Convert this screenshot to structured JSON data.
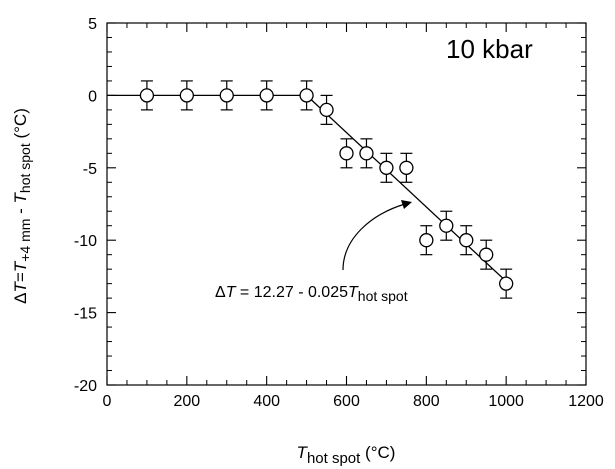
{
  "chart_data": {
    "type": "scatter",
    "panel_label": "10 kbar",
    "xlabel": {
      "main": "T",
      "sub": "hot spot",
      "unit": " (°C)"
    },
    "ylabel": {
      "delta": "Δ",
      "T1": "T",
      "eq": "=",
      "T2": "T",
      "sub1": "+4 mm",
      "minus": " - ",
      "T3": "T",
      "sub2": "hot spot",
      "unit": " (°C)"
    },
    "xlim": [
      0,
      1200
    ],
    "ylim": [
      -20,
      5
    ],
    "xticks": [
      0,
      200,
      400,
      600,
      800,
      1000,
      1200
    ],
    "yticks": [
      5,
      0,
      -5,
      -10,
      -15,
      -20
    ],
    "grid": false,
    "series": [
      {
        "x": [
          100,
          200,
          300,
          400,
          500,
          550,
          600,
          650,
          700,
          750,
          800,
          850,
          900,
          950,
          1000
        ],
        "y": [
          0,
          0,
          0,
          0,
          0,
          -1,
          -4,
          -4,
          -5,
          -5,
          -10,
          -9,
          -10,
          -11,
          -13
        ],
        "error": 1
      }
    ],
    "fit_lines": [
      {
        "x": [
          0,
          500
        ],
        "y": [
          0,
          0
        ]
      },
      {
        "x": [
          500,
          1010
        ],
        "y": [
          0,
          -13.1
        ]
      }
    ],
    "annotation": {
      "delta": "Δ",
      "T1": "T",
      "rest": " = 12.27 - 0.025",
      "T2": "T",
      "sub": "hot spot"
    }
  }
}
